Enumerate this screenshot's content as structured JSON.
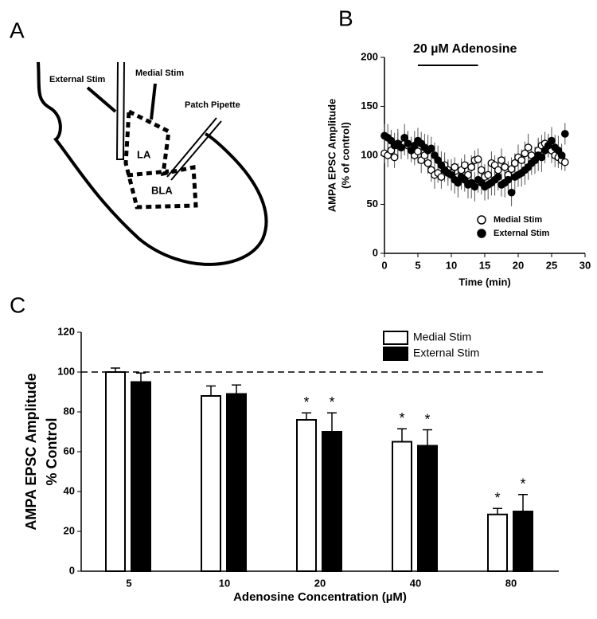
{
  "diagram": {
    "panel_label": "A",
    "labels": [
      "External Stim",
      "Medial Stim",
      "Patch Pipette",
      "LA",
      "BLA"
    ]
  },
  "chart_data": [
    {
      "type": "scatter",
      "panel_label": "B",
      "annotation": "20 µM Adenosine",
      "annotation_span": [
        5,
        14
      ],
      "ylabel": [
        "AMPA EPSC Amplitude",
        "(% of control)"
      ],
      "xlabel": "Time (min)",
      "xlim": [
        0,
        30
      ],
      "xticks": [
        0,
        5,
        10,
        15,
        20,
        25,
        30
      ],
      "ylim": [
        0,
        200
      ],
      "yticks": [
        0,
        50,
        100,
        150,
        200
      ],
      "legend": "lower right",
      "series": [
        {
          "name": "Medial Stim",
          "marker": "open",
          "color": "#000000",
          "x": [
            0,
            0.5,
            1,
            1.5,
            2,
            2.5,
            3,
            3.5,
            4,
            4.5,
            5,
            5.5,
            6,
            6.5,
            7,
            7.5,
            8,
            8.5,
            9,
            9.5,
            10,
            10.5,
            11,
            11.5,
            12,
            12.5,
            13,
            13.5,
            14,
            14.5,
            15,
            15.5,
            16,
            16.5,
            17,
            17.5,
            18,
            18.5,
            19,
            19.5,
            20,
            20.5,
            21,
            21.5,
            22,
            22.5,
            23,
            23.5,
            24,
            24.5,
            25,
            25.5,
            26,
            26.5,
            27
          ],
          "values": [
            102,
            100,
            105,
            98,
            110,
            108,
            112,
            110,
            108,
            100,
            104,
            95,
            100,
            92,
            85,
            80,
            82,
            78,
            90,
            85,
            82,
            88,
            78,
            85,
            90,
            80,
            88,
            95,
            96,
            85,
            78,
            80,
            92,
            90,
            85,
            95,
            88,
            80,
            86,
            92,
            98,
            95,
            102,
            108,
            100,
            95,
            105,
            110,
            112,
            108,
            105,
            100,
            98,
            95,
            93
          ],
          "errors": [
            10,
            12,
            9,
            11,
            13,
            10,
            12,
            14,
            11,
            10,
            12,
            13,
            10,
            11,
            12,
            14,
            10,
            12,
            13,
            11,
            12,
            10,
            14,
            12,
            11,
            13,
            12,
            10,
            11,
            12,
            13,
            11,
            12,
            10,
            13,
            12,
            11,
            14,
            12,
            10,
            13,
            11,
            12,
            14,
            10,
            12,
            13,
            11,
            12,
            10,
            13,
            12,
            11,
            10,
            9
          ]
        },
        {
          "name": "External Stim",
          "marker": "filled",
          "color": "#000000",
          "x": [
            0,
            0.5,
            1,
            1.5,
            2,
            2.5,
            3,
            3.5,
            4,
            4.5,
            5,
            5.5,
            6,
            6.5,
            7,
            7.5,
            8,
            8.5,
            9,
            9.5,
            10,
            10.5,
            11,
            11.5,
            12,
            12.5,
            13,
            13.5,
            14,
            14.5,
            15,
            15.5,
            16,
            16.5,
            17,
            17.5,
            18,
            18.5,
            19,
            19.5,
            20,
            20.5,
            21,
            21.5,
            22,
            22.5,
            23,
            23.5,
            24,
            24.5,
            25,
            25.5,
            26,
            26.5,
            27
          ],
          "values": [
            120,
            118,
            115,
            110,
            112,
            108,
            118,
            112,
            105,
            110,
            115,
            112,
            108,
            105,
            107,
            100,
            95,
            90,
            85,
            82,
            80,
            75,
            72,
            78,
            75,
            70,
            72,
            68,
            75,
            72,
            68,
            70,
            72,
            75,
            78,
            70,
            72,
            75,
            62,
            78,
            80,
            82,
            85,
            88,
            92,
            95,
            100,
            98,
            105,
            110,
            115,
            108,
            105,
            100,
            122
          ],
          "errors": [
            12,
            14,
            11,
            13,
            15,
            12,
            14,
            13,
            12,
            15,
            13,
            12,
            14,
            16,
            12,
            13,
            15,
            14,
            12,
            13,
            16,
            14,
            15,
            13,
            12,
            14,
            16,
            15,
            13,
            12,
            14,
            15,
            13,
            16,
            14,
            12,
            15,
            13,
            14,
            16,
            12,
            14,
            15,
            13,
            12,
            14,
            16,
            15,
            13,
            12,
            14,
            13,
            15,
            12,
            11
          ]
        }
      ]
    },
    {
      "type": "bar",
      "panel_label": "C",
      "ylabel": [
        "AMPA EPSC Amplitude",
        "% Control"
      ],
      "xlabel": "Adenosine Concentration (µM)",
      "categories": [
        "5",
        "10",
        "20",
        "40",
        "80"
      ],
      "ylim": [
        0,
        120
      ],
      "yticks": [
        0,
        20,
        40,
        60,
        80,
        100,
        120
      ],
      "reference_line": 100,
      "legend": "upper right",
      "series": [
        {
          "name": "Medial Stim",
          "color": "#ffffff",
          "values": [
            100,
            88,
            76,
            65,
            28.5
          ],
          "errors": [
            2,
            5,
            3.5,
            6.5,
            3
          ],
          "significance": [
            null,
            null,
            "*",
            "*",
            "*"
          ]
        },
        {
          "name": "External Stim",
          "color": "#000000",
          "values": [
            95,
            89,
            70,
            63,
            30
          ],
          "errors": [
            4.5,
            4.5,
            9.5,
            8,
            8.5
          ],
          "significance": [
            null,
            null,
            "*",
            "*",
            "*"
          ]
        }
      ]
    }
  ]
}
